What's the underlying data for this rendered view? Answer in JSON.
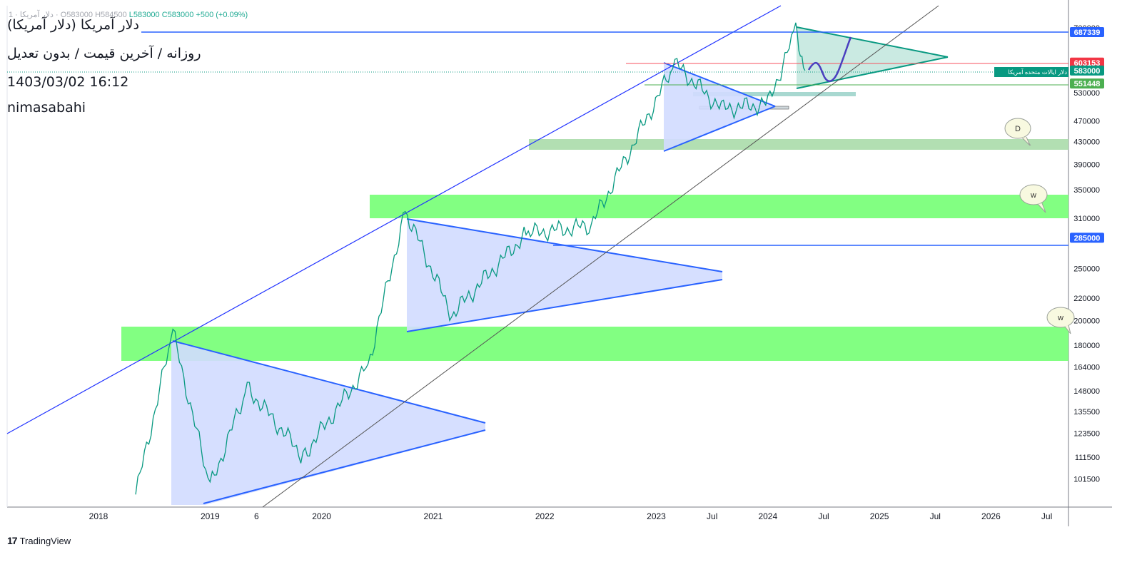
{
  "header": {
    "ohlc_prefix": "دلار آمریکا · 1 ·",
    "ohlc_open": "O583000",
    "ohlc_high": "H584500",
    "ohlc_low": "L583000",
    "ohlc_close": "C583000",
    "ohlc_change": "+500 (+0.09%)",
    "title": "دلار آمریکا (دلار آمریکا)",
    "subtitle": "روزانه / آخرین قیمت / بدون تعدیل",
    "datetime": "1403/03/02 16:12",
    "author": "nimasabahi"
  },
  "brand": {
    "icon": "tradingview-logo",
    "name": "TradingView"
  },
  "price_axis": {
    "ticks": [
      "700000",
      "530000",
      "470000",
      "430000",
      "390000",
      "350000",
      "310000",
      "250000",
      "220000",
      "200000",
      "180000",
      "164000",
      "148000",
      "135500",
      "123500",
      "111500",
      "101500"
    ],
    "badges": [
      {
        "label": "687339",
        "color": "#2962ff"
      },
      {
        "label": "603153",
        "color": "#f23645"
      },
      {
        "label": "583000",
        "color": "#089981"
      },
      {
        "label": "551448",
        "color": "#4caf50"
      },
      {
        "label": "285000",
        "color": "#2962ff"
      }
    ],
    "symbol_tag": "دلار ایالات متحده آمریکا"
  },
  "time_axis": {
    "ticks": [
      "2018",
      "2019",
      "6",
      "2020",
      "2021",
      "2022",
      "2023",
      "Jul",
      "2024",
      "Jul",
      "2025",
      "Jul",
      "2026",
      "Jul"
    ]
  },
  "annotations": [
    {
      "label": "D",
      "kind": "speech-bubble"
    },
    {
      "label": "w",
      "kind": "speech-bubble"
    },
    {
      "label": "w",
      "kind": "speech-bubble"
    }
  ],
  "chart_data": {
    "type": "candlestick",
    "scale": "log",
    "title": "دلار آمریکا (دلار آمریکا)",
    "interval": "daily",
    "grid": false,
    "price_levels": [
      687339,
      603153,
      583000,
      551448,
      285000
    ],
    "key_points": [
      {
        "date": "2018-05",
        "price": 95000
      },
      {
        "date": "2018-09",
        "price": 190000
      },
      {
        "date": "2019-01",
        "price": 98000
      },
      {
        "date": "2019-05",
        "price": 150000
      },
      {
        "date": "2019-11",
        "price": 112000
      },
      {
        "date": "2020-06",
        "price": 165000
      },
      {
        "date": "2020-10",
        "price": 320000
      },
      {
        "date": "2021-03",
        "price": 205000
      },
      {
        "date": "2021-11",
        "price": 290000
      },
      {
        "date": "2022-06",
        "price": 300000
      },
      {
        "date": "2023-03",
        "price": 600000
      },
      {
        "date": "2023-08",
        "price": 495000
      },
      {
        "date": "2024-01",
        "price": 505000
      },
      {
        "date": "2024-04",
        "price": 690000
      },
      {
        "date": "2024-05",
        "price": 583000
      }
    ],
    "zones": [
      {
        "from": 175000,
        "to": 205000
      },
      {
        "from": 318000,
        "to": 355000
      },
      {
        "from": 420000,
        "to": 440000
      }
    ],
    "patterns": [
      "symmetrical-triangle",
      "symmetrical-triangle",
      "symmetrical-triangle",
      "symmetrical-triangle",
      "rising-channel"
    ]
  }
}
